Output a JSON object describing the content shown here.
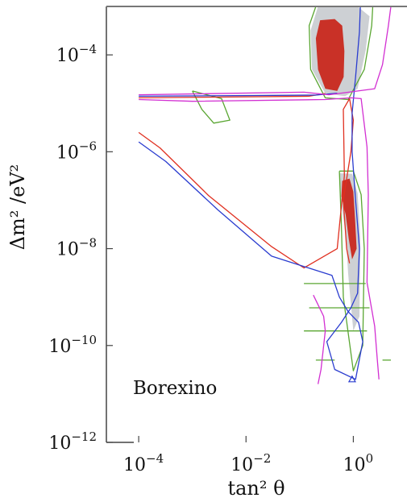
{
  "chart_data": {
    "type": "contour",
    "xlabel": "tan² θ",
    "ylabel": "Δm² /eV²",
    "xscale": "log",
    "yscale": "log",
    "xlim": [
      2.5e-05,
      10
    ],
    "ylim": [
      1e-12,
      0.001
    ],
    "x_ticks": [
      {
        "value": 0.0001,
        "base": "10",
        "exp": "−4"
      },
      {
        "value": 0.01,
        "base": "10",
        "exp": "−2"
      },
      {
        "value": 1,
        "base": "10",
        "exp": "0"
      }
    ],
    "y_ticks": [
      {
        "value": 0.0001,
        "base": "10",
        "exp": "−4"
      },
      {
        "value": 1e-06,
        "base": "10",
        "exp": "−6"
      },
      {
        "value": 1e-08,
        "base": "10",
        "exp": "−8"
      },
      {
        "value": 1e-10,
        "base": "10",
        "exp": "−10"
      },
      {
        "value": 1e-12,
        "base": "10",
        "exp": "−12"
      }
    ],
    "annotation": "Borexino",
    "colors": {
      "filled_core": "#c8281e",
      "filled_outer": "#c4c8cc",
      "green_contour": "#5aa632",
      "red_contour": "#e03020",
      "blue_contour": "#2a3ccf",
      "magenta_contour": "#d22fd2"
    },
    "series": [
      {
        "style": "filled",
        "color": "#c8281e",
        "regions": [
          [
            [
              0.24,
              0.00052
            ],
            [
              0.45,
              0.00055
            ],
            [
              0.62,
              0.0004
            ],
            [
              0.68,
              0.00012
            ],
            [
              0.66,
              3.5e-05
            ],
            [
              0.5,
              1.8e-05
            ],
            [
              0.3,
              2e-05
            ],
            [
              0.22,
              5e-05
            ],
            [
              0.2,
              0.00022
            ]
          ],
          [
            [
              0.62,
              2.5e-07
            ],
            [
              0.85,
              2.8e-07
            ],
            [
              1.0,
              1.5e-07
            ],
            [
              1.08,
              4e-08
            ],
            [
              1.15,
              1e-08
            ],
            [
              0.95,
              6e-09
            ],
            [
              0.82,
              1.6e-08
            ],
            [
              0.72,
              5e-08
            ],
            [
              0.6,
              1.2e-07
            ]
          ]
        ]
      },
      {
        "style": "filled",
        "color": "#c4c8cc",
        "regions": [
          [
            [
              0.22,
              0.001
            ],
            [
              0.6,
              0.001
            ],
            [
              1.2,
              0.001
            ],
            [
              2.0,
              0.00063
            ],
            [
              1.7,
              0.000126
            ],
            [
              1.2,
              2e-05
            ],
            [
              0.7,
              1.4e-05
            ],
            [
              0.3,
              1.6e-05
            ],
            [
              0.17,
              5e-05
            ],
            [
              0.16,
              0.00032
            ]
          ],
          [
            [
              0.55,
              3.6e-07
            ],
            [
              0.95,
              3.5e-07
            ],
            [
              1.2,
              1.4e-07
            ],
            [
              1.35,
              1.6e-08
            ],
            [
              1.3,
              4e-10
            ],
            [
              1.0,
              2e-10
            ],
            [
              0.8,
              3e-09
            ],
            [
              0.72,
              2e-08
            ],
            [
              0.58,
              1e-07
            ]
          ]
        ]
      },
      {
        "style": "line",
        "color": "#5aa632",
        "paths": [
          [
            [
              0.2,
              0.001
            ],
            [
              0.15,
              0.0004
            ],
            [
              0.16,
              5e-05
            ],
            [
              0.3,
              1.3e-05
            ],
            [
              0.8,
              1.2e-05
            ],
            [
              1.6,
              5e-05
            ],
            [
              2.2,
              0.0004
            ],
            [
              2.3,
              0.001
            ]
          ],
          [
            [
              0.001,
              1.8e-05
            ],
            [
              0.0035,
              1.25e-05
            ],
            [
              0.005,
              4.5e-06
            ],
            [
              0.0025,
              3.9e-06
            ],
            [
              0.0015,
              7.5e-06
            ],
            [
              0.001,
              1.8e-05
            ]
          ],
          [
            [
              0.55,
              4e-07
            ],
            [
              1.0,
              4e-07
            ],
            [
              1.4,
              1.3e-07
            ],
            [
              1.6,
              1e-08
            ],
            [
              1.5,
              1e-10
            ],
            [
              1.0,
              3e-11
            ],
            [
              0.65,
              1e-09
            ],
            [
              0.6,
              3e-08
            ],
            [
              0.55,
              4e-07
            ]
          ],
          [
            [
              0.12,
              1.9e-09
            ],
            [
              1.7,
              1.9e-09
            ]
          ],
          [
            [
              0.15,
              6e-10
            ],
            [
              2.0,
              6e-10
            ]
          ],
          [
            [
              0.12,
              2e-10
            ],
            [
              1.8,
              2e-10
            ]
          ],
          [
            [
              0.2,
              5e-11
            ],
            [
              0.45,
              5e-11
            ]
          ],
          [
            [
              3.5,
              5e-11
            ],
            [
              5.0,
              5e-11
            ]
          ]
        ]
      },
      {
        "style": "line",
        "color": "#e03020",
        "paths": [
          [
            [
              0.0001,
              2.5e-06
            ],
            [
              0.00025,
              1.2e-06
            ],
            [
              0.002,
              1.25e-07
            ],
            [
              0.03,
              1.1e-08
            ],
            [
              0.12,
              4e-09
            ],
            [
              0.5,
              1e-08
            ],
            [
              0.68,
              3.2e-07
            ],
            [
              0.65,
              7.5e-06
            ],
            [
              0.85,
              1.25e-05
            ],
            [
              1.0,
              4.5e-06
            ],
            [
              0.9,
              1e-06
            ],
            [
              0.65,
              1e-07
            ],
            [
              0.75,
              1e-08
            ],
            [
              0.85,
              5e-09
            ]
          ],
          [
            [
              0.0001,
              1.3e-05
            ],
            [
              0.15,
              1.4e-05
            ],
            [
              0.3,
              1.6e-05
            ]
          ]
        ]
      },
      {
        "style": "line",
        "color": "#2a3ccf",
        "paths": [
          [
            [
              0.0001,
              1.6e-06
            ],
            [
              0.00032,
              6.3e-07
            ],
            [
              0.003,
              6.3e-08
            ],
            [
              0.03,
              7e-09
            ],
            [
              0.4,
              2.8e-09
            ],
            [
              0.55,
              1e-09
            ],
            [
              0.8,
              5e-10
            ],
            [
              1.25,
              3e-10
            ],
            [
              1.5,
              1.2e-10
            ],
            [
              1.1,
              2e-11
            ],
            [
              0.45,
              3.2e-11
            ],
            [
              0.32,
              1.2e-10
            ],
            [
              0.6,
              3e-10
            ],
            [
              0.9,
              6e-10
            ],
            [
              1.2,
              1.2e-09
            ],
            [
              1.3,
              1e-08
            ],
            [
              1.1,
              1e-07
            ],
            [
              0.95,
              1e-06
            ],
            [
              0.95,
              6.3e-06
            ],
            [
              1.1,
              3.5e-05
            ],
            [
              1.3,
              0.0003
            ],
            [
              1.35,
              0.001
            ]
          ],
          [
            [
              0.0001,
              1.4e-05
            ],
            [
              0.2,
              1.48e-05
            ],
            [
              0.5,
              1.62e-05
            ]
          ]
        ]
      },
      {
        "style": "line",
        "color": "#d22fd2",
        "paths": [
          [
            [
              0.0001,
              1.2e-05
            ],
            [
              0.001,
              1.1e-05
            ],
            [
              0.3,
              1.2e-05
            ],
            [
              0.9,
              1.3e-05
            ],
            [
              1.4,
              1.25e-05
            ],
            [
              1.8,
              1.25e-06
            ],
            [
              1.9,
              1.3e-07
            ],
            [
              1.8,
              2e-09
            ],
            [
              2.5,
              2.5e-10
            ],
            [
              2.8,
              5e-11
            ],
            [
              3.0,
              2e-11
            ]
          ],
          [
            [
              0.0001,
              1.5e-05
            ],
            [
              0.12,
              1.7e-05
            ],
            [
              0.35,
              1.5e-05
            ],
            [
              2.5,
              2e-05
            ],
            [
              3.5,
              6.3e-05
            ],
            [
              4.5,
              0.0004
            ],
            [
              5.0,
              0.001
            ]
          ],
          [
            [
              0.18,
              1.1e-09
            ],
            [
              0.28,
              4e-10
            ],
            [
              0.3,
              2e-10
            ],
            [
              0.25,
              3.2e-11
            ],
            [
              0.22,
              1.6e-11
            ]
          ]
        ]
      },
      {
        "style": "marker",
        "color": "#2a3ccf",
        "points": [
          [
            0.95,
            2e-11
          ]
        ]
      }
    ]
  }
}
